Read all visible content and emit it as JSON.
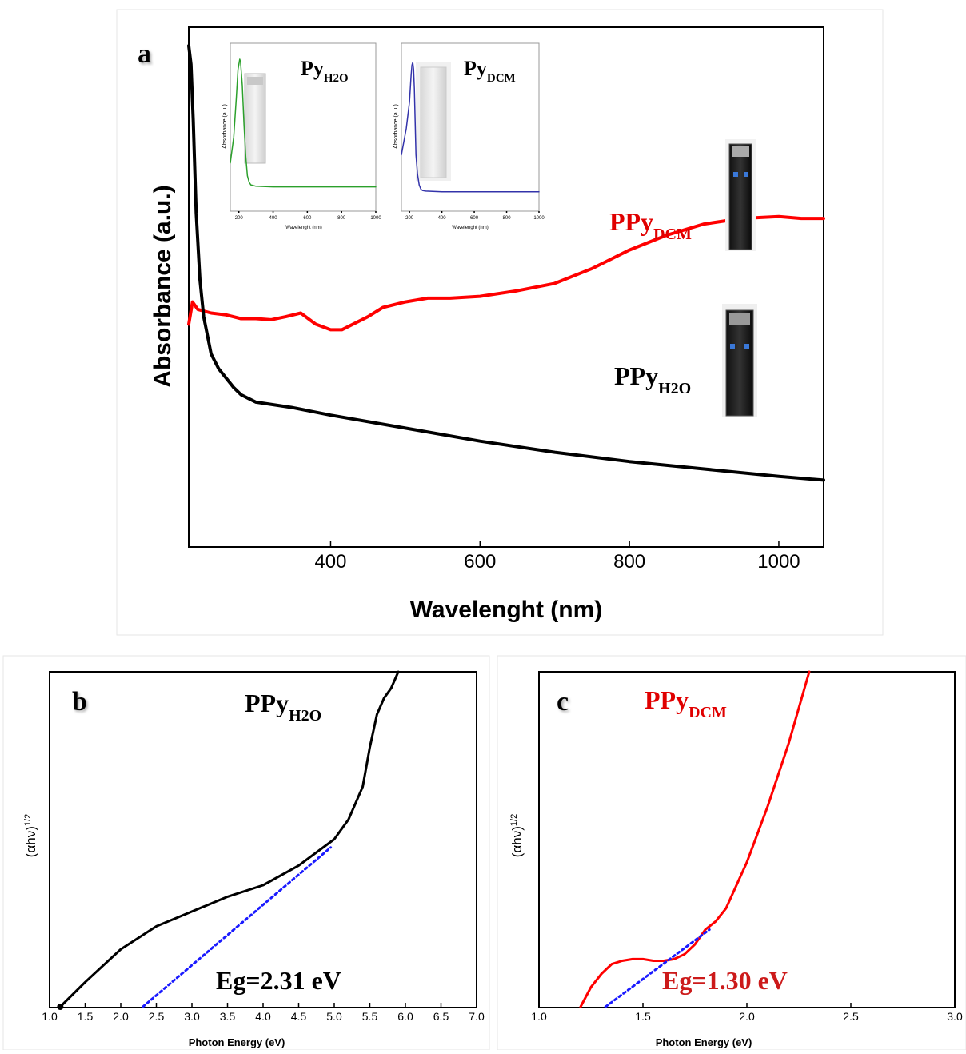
{
  "chart_data": [
    {
      "panel": "a",
      "type": "line",
      "panel_label": "a",
      "xlabel": "Wavelenght (nm)",
      "ylabel": "Absorbance (a.u.)",
      "xlim": [
        210,
        1060
      ],
      "x_ticks": [
        "400",
        "600",
        "800",
        "1000"
      ],
      "series": [
        {
          "name": "PPyDCM",
          "label_main": "PPy",
          "label_sub": "DCM",
          "color": "#ff0000",
          "x": [
            210,
            215,
            222,
            240,
            260,
            280,
            300,
            320,
            340,
            360,
            370,
            380,
            400,
            415,
            430,
            450,
            470,
            500,
            530,
            560,
            600,
            650,
            700,
            750,
            800,
            850,
            900,
            950,
            1000,
            1030,
            1060
          ],
          "y": [
            0.6,
            0.66,
            0.64,
            0.63,
            0.625,
            0.615,
            0.615,
            0.612,
            0.62,
            0.63,
            0.615,
            0.6,
            0.585,
            0.585,
            0.6,
            0.62,
            0.645,
            0.66,
            0.67,
            0.67,
            0.675,
            0.69,
            0.71,
            0.75,
            0.8,
            0.84,
            0.87,
            0.885,
            0.89,
            0.885,
            0.885
          ]
        },
        {
          "name": "PPyH2O",
          "label_main": "PPy",
          "label_sub": "H2O",
          "color": "#000000",
          "x": [
            210,
            213,
            216,
            220,
            225,
            230,
            240,
            250,
            260,
            270,
            280,
            290,
            300,
            350,
            400,
            500,
            600,
            700,
            800,
            900,
            1000,
            1060
          ],
          "y": [
            1.35,
            1.3,
            1.15,
            0.9,
            0.72,
            0.62,
            0.52,
            0.48,
            0.455,
            0.43,
            0.41,
            0.4,
            0.39,
            0.375,
            0.355,
            0.32,
            0.285,
            0.255,
            0.23,
            0.21,
            0.19,
            0.18
          ]
        }
      ]
    },
    {
      "panel": "a-inset-1",
      "type": "line",
      "title_main": "Py",
      "title_sub": "H2O",
      "xlabel": "Wavelenght (nm)",
      "ylabel": "Absorbance (a.u.)",
      "xlim": [
        150,
        1000
      ],
      "x_ticks": [
        "200",
        "400",
        "600",
        "800",
        "1000"
      ],
      "series": [
        {
          "color": "#2ca02c",
          "x": [
            150,
            170,
            185,
            195,
            205,
            210,
            220,
            230,
            240,
            250,
            260,
            270,
            300,
            400,
            600,
            800,
            1000
          ],
          "y": [
            0.2,
            0.4,
            0.7,
            0.92,
            1.0,
            0.98,
            0.8,
            0.5,
            0.25,
            0.1,
            0.05,
            0.03,
            0.02,
            0.015,
            0.015,
            0.015,
            0.015
          ]
        }
      ]
    },
    {
      "panel": "a-inset-2",
      "type": "line",
      "title_main": "Py",
      "title_sub": "DCM",
      "xlabel": "Wavelenght (nm)",
      "ylabel": "Absorbance (a.u.)",
      "xlim": [
        150,
        1000
      ],
      "x_ticks": [
        "200",
        "400",
        "600",
        "800",
        "1000"
      ],
      "series": [
        {
          "color": "#3333aa",
          "x": [
            150,
            180,
            200,
            210,
            215,
            220,
            225,
            230,
            235,
            240,
            250,
            260,
            270,
            280,
            300,
            400,
            600,
            800,
            1000
          ],
          "y": [
            0.3,
            0.5,
            0.7,
            0.9,
            0.98,
            1.0,
            0.95,
            0.8,
            0.55,
            0.3,
            0.15,
            0.07,
            0.04,
            0.03,
            0.025,
            0.02,
            0.02,
            0.02,
            0.02
          ]
        }
      ]
    },
    {
      "panel": "b",
      "type": "line",
      "panel_label": "b",
      "xlabel": "Photon Energy (eV)",
      "ylabel_main": "(αhν)",
      "ylabel_sup": "1/2",
      "xlim": [
        1.0,
        7.0
      ],
      "x_ticks": [
        "1.0",
        "1.5",
        "2.0",
        "2.5",
        "3.0",
        "3.5",
        "4.0",
        "4.5",
        "5.0",
        "5.5",
        "6.0",
        "6.5",
        "7.0"
      ],
      "series_label_main": "PPy",
      "series_label_sub": "H2O",
      "annotation": "Eg=2.31 eV",
      "annotation_color": "#000000",
      "series": [
        {
          "color": "#000000",
          "x": [
            1.15,
            1.5,
            2.0,
            2.5,
            3.0,
            3.5,
            4.0,
            4.5,
            5.0,
            5.2,
            5.4,
            5.5,
            5.6,
            5.7,
            5.8,
            5.9
          ],
          "y": [
            0.0,
            0.075,
            0.175,
            0.245,
            0.29,
            0.335,
            0.37,
            0.43,
            0.51,
            0.57,
            0.67,
            0.79,
            0.89,
            0.94,
            0.97,
            1.02
          ]
        },
        {
          "color": "#1a1aff",
          "dashed": true,
          "x": [
            2.31,
            4.95
          ],
          "y": [
            0.0,
            0.485
          ]
        }
      ]
    },
    {
      "panel": "c",
      "type": "line",
      "panel_label": "c",
      "xlabel": "Photon Energy (eV)",
      "ylabel_main": "(αhν)",
      "ylabel_sup": "1/2",
      "xlim": [
        1.0,
        3.0
      ],
      "x_ticks": [
        "1.0",
        "1.5",
        "2.0",
        "2.5",
        "3.0"
      ],
      "series_label_main": "PPy",
      "series_label_sub": "DCM",
      "annotation": "Eg=1.30 eV",
      "annotation_color": "#cc1a1a",
      "series": [
        {
          "color": "#ff0000",
          "x": [
            1.2,
            1.25,
            1.3,
            1.35,
            1.4,
            1.45,
            1.5,
            1.55,
            1.6,
            1.65,
            1.7,
            1.75,
            1.8,
            1.85,
            1.9,
            2.0,
            2.1,
            2.2,
            2.3
          ],
          "y": [
            0.0,
            0.06,
            0.1,
            0.13,
            0.14,
            0.145,
            0.145,
            0.14,
            0.14,
            0.145,
            0.16,
            0.19,
            0.235,
            0.26,
            0.3,
            0.44,
            0.61,
            0.8,
            1.02
          ]
        },
        {
          "color": "#1a1aff",
          "dashed": true,
          "x": [
            1.32,
            1.82
          ],
          "y": [
            0.0,
            0.235
          ]
        }
      ]
    }
  ]
}
